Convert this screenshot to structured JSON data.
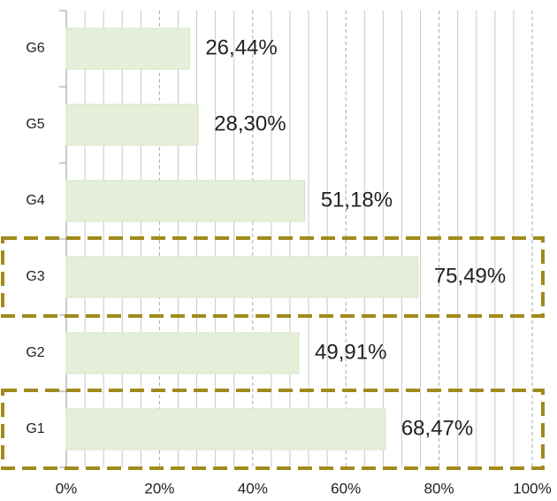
{
  "chart_data": {
    "type": "barh",
    "categories": [
      "G1",
      "G2",
      "G3",
      "G4",
      "G5",
      "G6"
    ],
    "values": [
      68.47,
      49.91,
      75.49,
      51.18,
      28.3,
      26.44
    ],
    "value_labels": [
      "68,47%",
      "49,91%",
      "75,49%",
      "51,18%",
      "28,30%",
      "26,44%"
    ],
    "color": "#e5efd9",
    "xlim": [
      0,
      100
    ],
    "xticks": [
      {
        "value": 0,
        "label": "0%"
      },
      {
        "value": 20,
        "label": "20%"
      },
      {
        "value": 40,
        "label": "40%"
      },
      {
        "value": 60,
        "label": "60%"
      },
      {
        "value": 80,
        "label": "80%"
      },
      {
        "value": 100,
        "label": "100%"
      }
    ],
    "minor_xticks": [
      4,
      8,
      12,
      16,
      24,
      28,
      32,
      36,
      44,
      48,
      52,
      56,
      64,
      68,
      72,
      76,
      84,
      88,
      92,
      96
    ],
    "grid": true,
    "highlight": [
      "G3",
      "G1"
    ],
    "highlight_color": "#a08a1c"
  }
}
